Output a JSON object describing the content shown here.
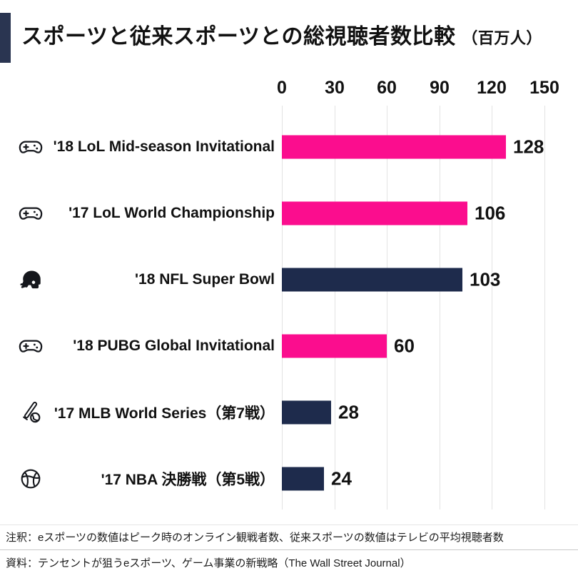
{
  "title": {
    "text": "スポーツと従来スポーツとの総視聴者数比較",
    "unit": "（百万人）"
  },
  "axis": {
    "ticks": [
      "0",
      "30",
      "60",
      "90",
      "120",
      "150"
    ]
  },
  "rows": [
    {
      "label": "'18 LoL Mid-season Invitational",
      "value": "128",
      "category": "esports",
      "icon": "gamepad-icon"
    },
    {
      "label": "'17 LoL World Championship",
      "value": "106",
      "category": "esports",
      "icon": "gamepad-icon"
    },
    {
      "label": "'18 NFL Super Bowl",
      "value": "103",
      "category": "traditional",
      "icon": "football-helmet-icon"
    },
    {
      "label": "'18 PUBG Global Invitational",
      "value": "60",
      "category": "esports",
      "icon": "gamepad-icon"
    },
    {
      "label": "'17 MLB World Series（第7戦）",
      "value": "28",
      "category": "traditional",
      "icon": "baseball-icon"
    },
    {
      "label": "'17 NBA 決勝戦（第5戦）",
      "value": "24",
      "category": "traditional",
      "icon": "basketball-icon"
    }
  ],
  "chart_data": {
    "type": "bar",
    "orientation": "horizontal",
    "title": "スポーツと従来スポーツとの総視聴者数比較（百万人）",
    "categories": [
      "'18 LoL Mid-season Invitational",
      "'17 LoL World Championship",
      "'18 NFL Super Bowl",
      "'18 PUBG Global Invitational",
      "'17 MLB World Series（第7戦）",
      "'17 NBA 決勝戦（第5戦）"
    ],
    "values": [
      128,
      106,
      103,
      60,
      28,
      24
    ],
    "series": [
      {
        "name": "eスポーツ",
        "color": "#fb0d8e",
        "rows": [
          0,
          1,
          3
        ]
      },
      {
        "name": "従来スポーツ",
        "color": "#1e2b4c",
        "rows": [
          2,
          4,
          5
        ]
      }
    ],
    "xlabel": "",
    "ylabel": "",
    "xlim": [
      0,
      150
    ],
    "x_ticks": [
      0,
      30,
      60,
      90,
      120,
      150
    ],
    "axis_position": "top",
    "grid": true,
    "value_labels": true,
    "legend": false
  },
  "footer": {
    "note": "注釈：eスポーツの数値はピーク時のオンライン観戦者数、従来スポーツの数値はテレビの平均視聴者数",
    "source": "資料：テンセントが狙うeスポーツ、ゲーム事業の新戦略（The Wall Street Journal）"
  },
  "colors": {
    "esports": "#fb0d8e",
    "traditional": "#1e2b4c",
    "accent_bar": "#2a3551",
    "grid": "#e3e3e3"
  }
}
